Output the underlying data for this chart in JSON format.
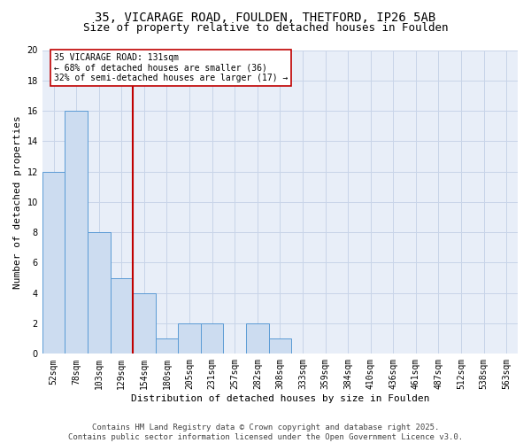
{
  "title1": "35, VICARAGE ROAD, FOULDEN, THETFORD, IP26 5AB",
  "title2": "Size of property relative to detached houses in Foulden",
  "xlabel": "Distribution of detached houses by size in Foulden",
  "ylabel": "Number of detached properties",
  "categories": [
    "52sqm",
    "78sqm",
    "103sqm",
    "129sqm",
    "154sqm",
    "180sqm",
    "205sqm",
    "231sqm",
    "257sqm",
    "282sqm",
    "308sqm",
    "333sqm",
    "359sqm",
    "384sqm",
    "410sqm",
    "436sqm",
    "461sqm",
    "487sqm",
    "512sqm",
    "538sqm",
    "563sqm"
  ],
  "values": [
    12,
    16,
    8,
    5,
    4,
    1,
    2,
    2,
    0,
    2,
    1,
    0,
    0,
    0,
    0,
    0,
    0,
    0,
    0,
    0,
    0
  ],
  "bar_color": "#ccdcf0",
  "bar_edge_color": "#5b9bd5",
  "vline_x_idx": 3,
  "vline_color": "#c00000",
  "annotation_line1": "35 VICARAGE ROAD: 131sqm",
  "annotation_line2": "← 68% of detached houses are smaller (36)",
  "annotation_line3": "32% of semi-detached houses are larger (17) →",
  "annotation_box_color": "#c00000",
  "ylim": [
    0,
    20
  ],
  "yticks": [
    0,
    2,
    4,
    6,
    8,
    10,
    12,
    14,
    16,
    18,
    20
  ],
  "footer1": "Contains HM Land Registry data © Crown copyright and database right 2025.",
  "footer2": "Contains public sector information licensed under the Open Government Licence v3.0.",
  "bg_color": "#ffffff",
  "plot_bg_color": "#e8eef8",
  "grid_color": "#c8d4e8",
  "title_fontsize": 10,
  "subtitle_fontsize": 9,
  "axis_label_fontsize": 8,
  "tick_fontsize": 7,
  "annotation_fontsize": 7,
  "footer_fontsize": 6.5
}
